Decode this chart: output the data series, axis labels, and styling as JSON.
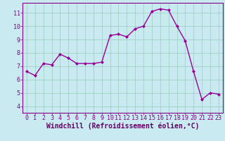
{
  "x": [
    0,
    1,
    2,
    3,
    4,
    5,
    6,
    7,
    8,
    9,
    10,
    11,
    12,
    13,
    14,
    15,
    16,
    17,
    18,
    19,
    20,
    21,
    22,
    23
  ],
  "y": [
    6.6,
    6.3,
    7.2,
    7.1,
    7.9,
    7.6,
    7.2,
    7.2,
    7.2,
    7.3,
    9.3,
    9.4,
    9.2,
    9.8,
    10.0,
    11.1,
    11.3,
    11.2,
    10.0,
    8.9,
    6.6,
    4.5,
    5.0,
    4.9
  ],
  "line_color": "#990099",
  "marker": "D",
  "markersize": 2.0,
  "linewidth": 1.0,
  "xlabel": "Windchill (Refroidissement éolien,°C)",
  "xlabel_color": "#660066",
  "xlim": [
    -0.5,
    23.5
  ],
  "ylim": [
    3.5,
    11.75
  ],
  "yticks": [
    4,
    5,
    6,
    7,
    8,
    9,
    10,
    11
  ],
  "xticks": [
    0,
    1,
    2,
    3,
    4,
    5,
    6,
    7,
    8,
    9,
    10,
    11,
    12,
    13,
    14,
    15,
    16,
    17,
    18,
    19,
    20,
    21,
    22,
    23
  ],
  "bg_color": "#c8eaf0",
  "grid_color": "#99ccbb",
  "tick_color": "#880088",
  "tick_fontsize": 6,
  "xlabel_fontsize": 7,
  "spine_color": "#880088"
}
